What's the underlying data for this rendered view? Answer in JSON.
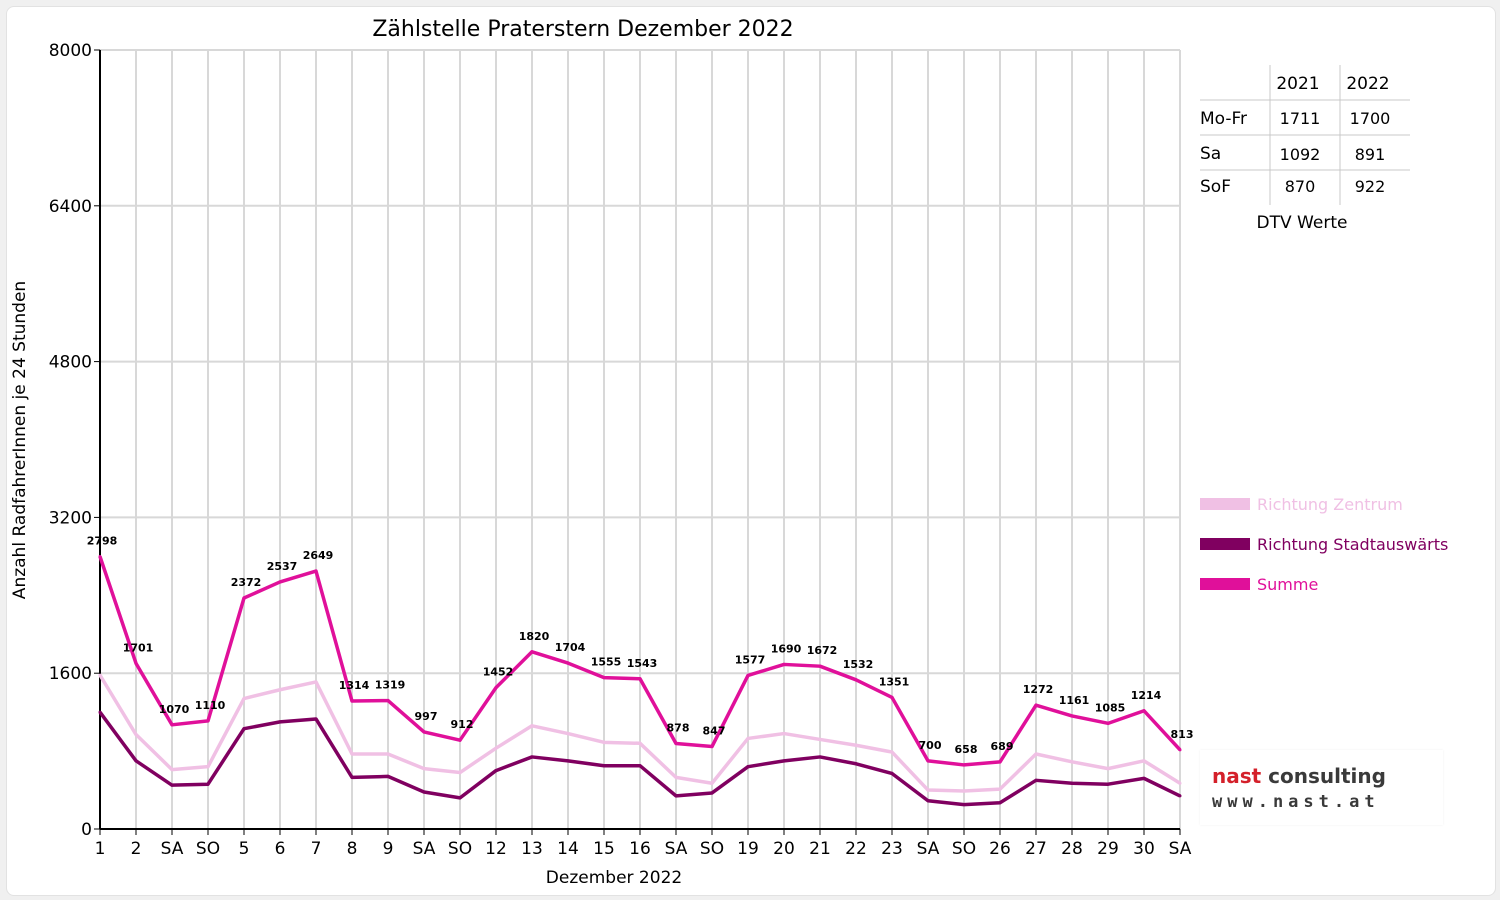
{
  "chart_data": {
    "type": "line",
    "title": "Zählstelle Praterstern Dezember 2022",
    "xlabel": "Dezember 2022",
    "ylabel": "Anzahl RadfahrerInnen je 24 Stunden",
    "ylim": [
      0,
      8000
    ],
    "yticks": [
      "0",
      "1600",
      "3200",
      "4800",
      "6400",
      "8000"
    ],
    "grid": true,
    "legend_position": "right",
    "categories": [
      "1",
      "2",
      "SA",
      "SO",
      "5",
      "6",
      "7",
      "8",
      "9",
      "SA",
      "SO",
      "12",
      "13",
      "14",
      "15",
      "16",
      "SA",
      "SO",
      "19",
      "20",
      "21",
      "22",
      "23",
      "SA",
      "SO",
      "26",
      "27",
      "28",
      "29",
      "30",
      "SA"
    ],
    "holiday_categories": [
      "SO",
      "8",
      "26"
    ],
    "series": [
      {
        "name": "Richtung Zentrum",
        "color": "#f0c0e4",
        "values": [
          1580,
          970,
          610,
          640,
          1340,
          1430,
          1510,
          770,
          770,
          620,
          580,
          830,
          1060,
          980,
          890,
          880,
          530,
          470,
          930,
          980,
          920,
          860,
          790,
          400,
          390,
          410,
          770,
          690,
          620,
          700,
          470
        ]
      },
      {
        "name": "Richtung Stadtauswärts",
        "color": "#800060",
        "values": [
          1200,
          700,
          450,
          460,
          1030,
          1100,
          1130,
          530,
          540,
          380,
          320,
          600,
          740,
          700,
          650,
          650,
          340,
          370,
          640,
          700,
          740,
          670,
          570,
          290,
          250,
          270,
          500,
          470,
          460,
          520,
          340
        ]
      },
      {
        "name": "Summe",
        "color": "#e0109a",
        "values": [
          2798,
          1701,
          1070,
          1110,
          2372,
          2537,
          2649,
          1314,
          1319,
          997,
          912,
          1452,
          1820,
          1704,
          1555,
          1543,
          878,
          847,
          1577,
          1690,
          1672,
          1532,
          1351,
          700,
          658,
          689,
          1272,
          1161,
          1085,
          1214,
          813
        ]
      }
    ],
    "data_labels": [
      "2798",
      "1701",
      "1070",
      "1110",
      "2372",
      "2537",
      "2649",
      "1314",
      "1319",
      "997",
      "912",
      "1452",
      "1820",
      "1704",
      "1555",
      "1543",
      "878",
      "847",
      "1577",
      "1690",
      "1672",
      "1532",
      "1351",
      "700",
      "658",
      "689",
      "1272",
      "1161",
      "1085",
      "1214",
      "813"
    ]
  },
  "dtv_table": {
    "caption": "DTV Werte",
    "columns": [
      "2021",
      "2022"
    ],
    "rows": [
      {
        "label": "Mo-Fr",
        "v2021": "1711",
        "v2022": "1700"
      },
      {
        "label": "Sa",
        "v2021": "1092",
        "v2022": "891"
      },
      {
        "label": "SoF",
        "v2021": "870",
        "v2022": "922"
      }
    ]
  },
  "logo": {
    "brand_part1": "nast",
    "brand_part2": " consulting",
    "url": "www.nast.at"
  },
  "colors": {
    "holiday": "#ff0000",
    "grid": "#d8d8d8"
  }
}
